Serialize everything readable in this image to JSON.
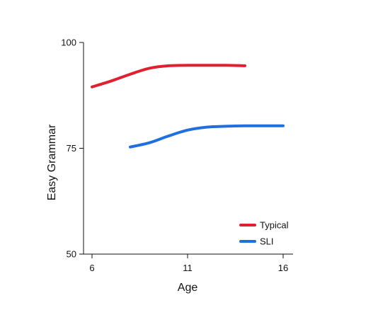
{
  "chart_data": {
    "type": "line",
    "title": "",
    "xlabel": "Age",
    "ylabel": "Easy Grammar",
    "xlim": [
      6,
      16
    ],
    "ylim": [
      50,
      100
    ],
    "x_ticks": [
      "6",
      "11",
      "16"
    ],
    "y_ticks": [
      "50",
      "75",
      "100"
    ],
    "grid": false,
    "legend_position": "bottom-right",
    "series": [
      {
        "name": "Typical",
        "color": "#e0202e",
        "x": [
          6,
          7,
          8,
          9,
          10,
          11,
          12,
          13,
          14
        ],
        "y": [
          89.5,
          90.9,
          92.5,
          93.9,
          94.5,
          94.6,
          94.6,
          94.6,
          94.5
        ]
      },
      {
        "name": "SLI",
        "color": "#1f6fe0",
        "x": [
          8,
          9,
          10,
          11,
          12,
          13,
          14,
          15,
          16
        ],
        "y": [
          75.3,
          76.3,
          77.9,
          79.3,
          80.0,
          80.2,
          80.3,
          80.3,
          80.3
        ]
      }
    ]
  }
}
